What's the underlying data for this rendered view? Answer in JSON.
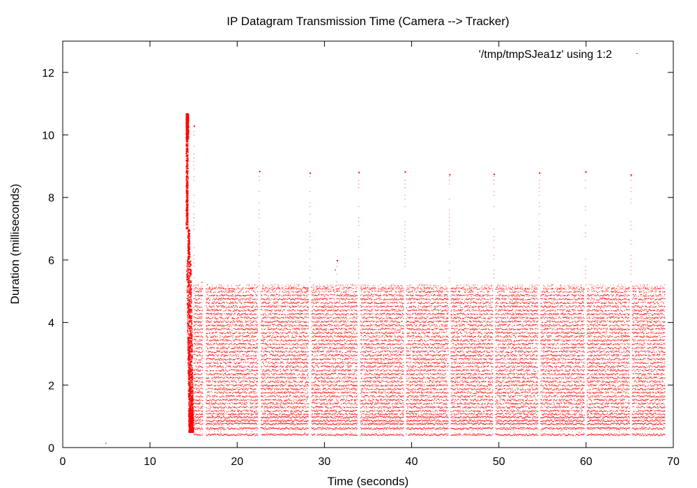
{
  "chart_data": {
    "type": "scatter",
    "title": "IP Datagram Transmission Time (Camera --> Tracker)",
    "xlabel": "Time (seconds)",
    "ylabel": "Duration (milliseconds)",
    "xlim": [
      0,
      70
    ],
    "ylim": [
      0,
      13
    ],
    "xticks": [
      0,
      10,
      20,
      30,
      40,
      50,
      60,
      70
    ],
    "yticks": [
      0,
      2,
      4,
      6,
      8,
      10,
      12
    ],
    "grid": false,
    "legend_position": "top-right",
    "series": [
      {
        "name": "'/tmp/tmpSJea1z' using 1:2",
        "color": "#ff0000",
        "marker": "dot",
        "burst_region": {
          "x_start": 13.9,
          "x_end": 15.0,
          "y_min": 0.5,
          "y_max": 10.7
        },
        "band": {
          "x_start": 15.0,
          "x_end": 69.0,
          "y_levels": [
            0.42,
            0.62,
            0.77,
            0.87,
            0.98,
            1.08,
            1.18,
            1.3,
            1.42,
            1.53,
            1.65,
            1.77,
            1.88,
            2.0,
            2.12,
            2.24,
            2.36,
            2.48,
            2.6,
            2.72,
            2.84,
            2.96,
            3.08,
            3.2,
            3.32,
            3.44,
            3.56,
            3.68,
            3.8,
            3.92,
            4.04,
            4.16,
            4.28,
            4.4,
            4.52,
            4.64,
            4.76,
            4.88,
            5.0,
            5.1
          ]
        },
        "spikes": [
          {
            "x": 22.5,
            "y": 8.85
          },
          {
            "x": 28.3,
            "y": 8.8
          },
          {
            "x": 33.9,
            "y": 8.82
          },
          {
            "x": 39.2,
            "y": 8.84
          },
          {
            "x": 44.3,
            "y": 8.75
          },
          {
            "x": 49.4,
            "y": 8.76
          },
          {
            "x": 54.6,
            "y": 8.8
          },
          {
            "x": 59.9,
            "y": 8.84
          },
          {
            "x": 65.1,
            "y": 8.74
          },
          {
            "x": 31.4,
            "y": 6.0
          },
          {
            "x": 15.0,
            "y": 10.3
          }
        ],
        "gaps_x": [
          16.2,
          22.5,
          28.3,
          33.9,
          39.2,
          44.3,
          49.4,
          54.6,
          59.9,
          65.1
        ],
        "stray_points": [
          {
            "x": 4.9,
            "y": 0.15
          },
          {
            "x": 15.9,
            "y": 5.3
          },
          {
            "x": 31.2,
            "y": 5.7
          }
        ]
      }
    ]
  }
}
